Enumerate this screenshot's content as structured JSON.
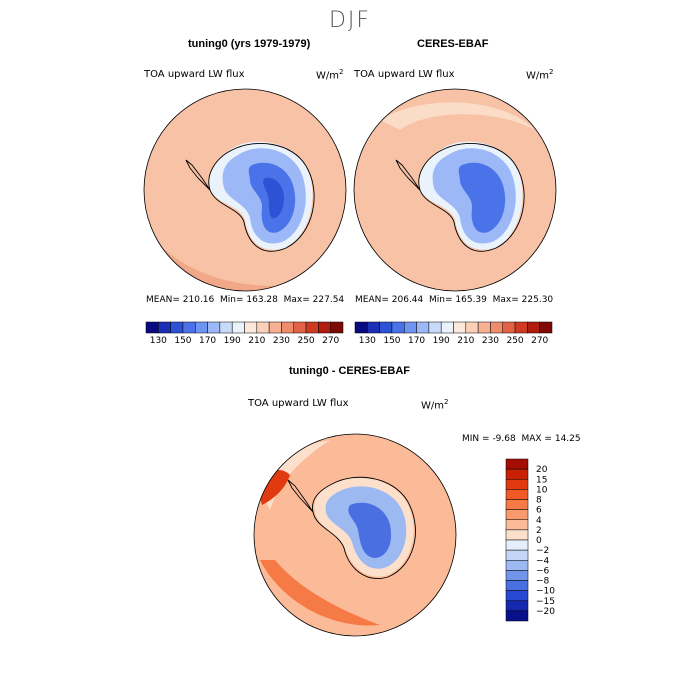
{
  "figure_title": "DJF",
  "chart_data": [
    {
      "type": "heatmap",
      "projection": "south-polar-stereographic",
      "title": "tuning0 (yrs 1979-1979)",
      "variable": "TOA upward LW flux",
      "units": "W/m",
      "units_sup": "2",
      "stats": {
        "mean_label": "MEAN=",
        "mean": "210.16",
        "min_label": "Min=",
        "min": "163.28",
        "max_label": "Max=",
        "max": "227.54"
      },
      "colorbar_ticks": [
        "130",
        "150",
        "170",
        "190",
        "210",
        "230",
        "250",
        "270"
      ],
      "colorbar_colors": [
        "#0a0a80",
        "#1b2fb4",
        "#2d52d6",
        "#4a73ea",
        "#6f95f2",
        "#9cb8f6",
        "#c7daf9",
        "#eaf2fc",
        "#fde9dc",
        "#fbd0b8",
        "#f7b094",
        "#ef8c6c",
        "#e36246",
        "#cf3a22",
        "#b01c0d",
        "#7e0a05"
      ]
    },
    {
      "type": "heatmap",
      "projection": "south-polar-stereographic",
      "title": "CERES-EBAF",
      "variable": "TOA upward LW flux",
      "units": "W/m",
      "units_sup": "2",
      "stats": {
        "mean_label": "MEAN=",
        "mean": "206.44",
        "min_label": "Min=",
        "min": "165.39",
        "max_label": "Max=",
        "max": "225.30"
      },
      "colorbar_ticks": [
        "130",
        "150",
        "170",
        "190",
        "210",
        "230",
        "250",
        "270"
      ],
      "colorbar_colors": [
        "#0a0a80",
        "#1b2fb4",
        "#2d52d6",
        "#4a73ea",
        "#6f95f2",
        "#9cb8f6",
        "#c7daf9",
        "#eaf2fc",
        "#fde9dc",
        "#fbd0b8",
        "#f7b094",
        "#ef8c6c",
        "#e36246",
        "#cf3a22",
        "#b01c0d",
        "#7e0a05"
      ]
    },
    {
      "type": "heatmap",
      "projection": "south-polar-stereographic",
      "title": "tuning0 - CERES-EBAF",
      "variable": "TOA upward LW flux",
      "units": "W/m",
      "units_sup": "2",
      "stats": {
        "min_label": "MIN =",
        "min": "-9.68",
        "max_label": "MAX =",
        "max": "14.25"
      },
      "colorbar_ticks": [
        "20",
        "15",
        "10",
        "8",
        "6",
        "4",
        "2",
        "0",
        "−2",
        "−4",
        "−6",
        "−8",
        "−10",
        "−15",
        "−20"
      ],
      "colorbar_colors": [
        "#a40d02",
        "#c81f05",
        "#e23a10",
        "#f05a26",
        "#f57a45",
        "#f89a6c",
        "#fbbb98",
        "#fde0cc",
        "#e6eefb",
        "#c4d6f6",
        "#9cb9f1",
        "#7295ea",
        "#4a6fe0",
        "#2748d0",
        "#1428b0",
        "#08108a"
      ]
    }
  ]
}
